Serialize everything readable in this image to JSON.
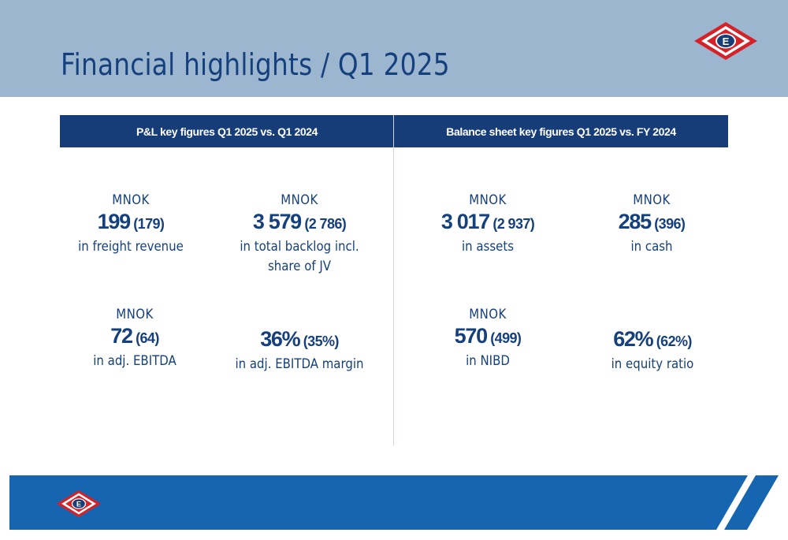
{
  "header": {
    "title": "Financial highlights / Q1 2025"
  },
  "table": {
    "left_header": "P&L key figures Q1 2025 vs. Q1 2024",
    "right_header": "Balance sheet key figures Q1 2025 vs. FY 2024"
  },
  "metrics": {
    "freight_revenue": {
      "unit": "MNOK",
      "value": "199",
      "prev": "(179)",
      "label": "in freight revenue"
    },
    "backlog": {
      "unit": "MNOK",
      "value": "3 579",
      "prev": "(2 786)",
      "label": "in total backlog incl. share of JV"
    },
    "assets": {
      "unit": "MNOK",
      "value": "3 017",
      "prev": "(2 937)",
      "label": "in assets"
    },
    "cash": {
      "unit": "MNOK",
      "value": "285",
      "prev": "(396)",
      "label": "in cash"
    },
    "adj_ebitda": {
      "unit": "MNOK",
      "value": "72",
      "prev": "(64)",
      "label": "in adj. EBITDA"
    },
    "ebitda_margin": {
      "value": "36%",
      "prev": "(35%)",
      "label": "in adj. EBITDA margin"
    },
    "nibd": {
      "unit": "MNOK",
      "value": "570",
      "prev": "(499)",
      "label": "in NIBD"
    },
    "equity_ratio": {
      "value": "62%",
      "prev": "(62%)",
      "label": "in equity ratio"
    }
  },
  "logo": {
    "letter": "E"
  },
  "colors": {
    "brand_navy": "#173d79",
    "title_blue": "#15407e",
    "top_band": "#9db6cf",
    "footer_blue": "#1565b0",
    "logo_red": "#d62128"
  }
}
